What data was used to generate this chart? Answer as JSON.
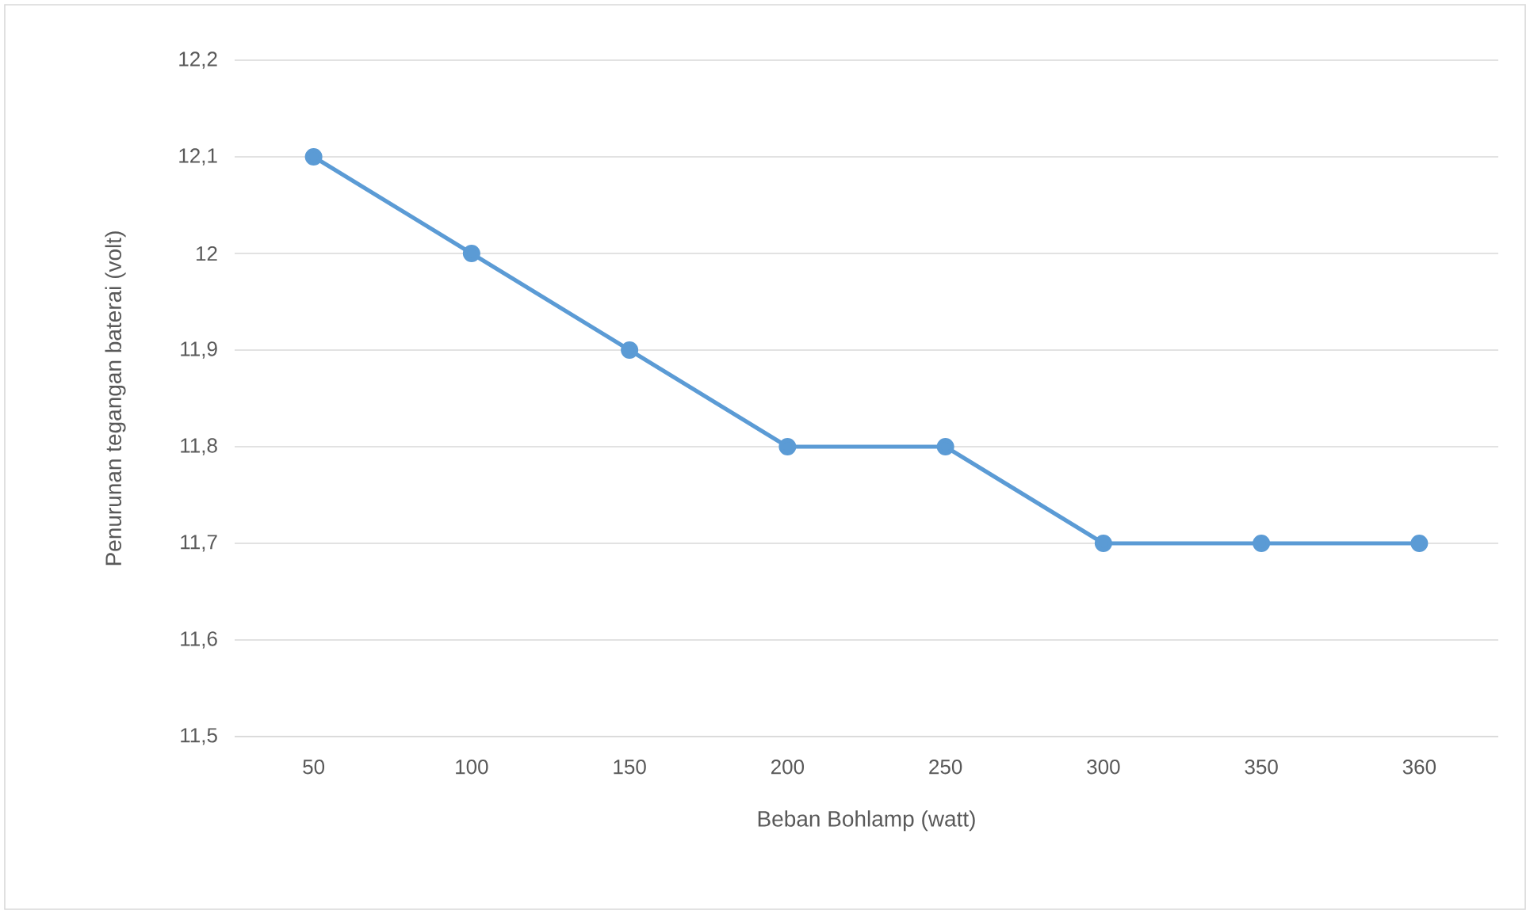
{
  "chart_data": {
    "type": "line",
    "xlabel": "Beban Bohlamp (watt)",
    "ylabel": "Penurunan tegangan baterai (volt)",
    "categories": [
      "50",
      "100",
      "150",
      "200",
      "250",
      "300",
      "350",
      "360"
    ],
    "series": [
      {
        "color": "#5b9bd5",
        "values": [
          12.1,
          12.0,
          11.9,
          11.8,
          11.8,
          11.7,
          11.7,
          11.7
        ]
      }
    ],
    "ylim": [
      11.5,
      12.2
    ],
    "yticks": [
      {
        "value": 11.5,
        "label": "11,5"
      },
      {
        "value": 11.6,
        "label": "11,6"
      },
      {
        "value": 11.7,
        "label": "11,7"
      },
      {
        "value": 11.8,
        "label": "11,8"
      },
      {
        "value": 11.9,
        "label": "11,9"
      },
      {
        "value": 12.0,
        "label": "12"
      },
      {
        "value": 12.1,
        "label": "12,1"
      },
      {
        "value": 12.2,
        "label": "12,2"
      }
    ],
    "grid": "y",
    "marker": "circle",
    "line_style": "solid"
  }
}
